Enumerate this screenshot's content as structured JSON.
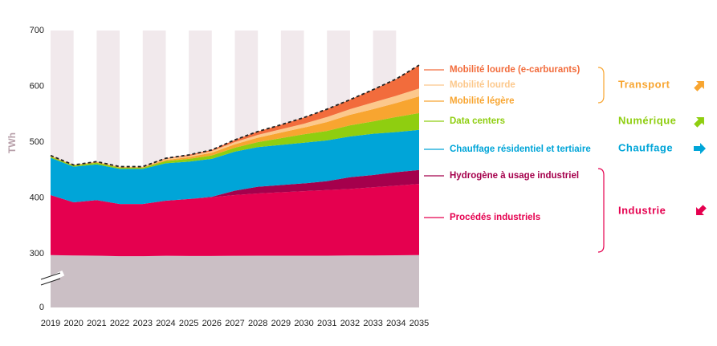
{
  "chart_data": {
    "type": "stacked-area",
    "ylabel": "TWh",
    "x": [
      2019,
      2020,
      2021,
      2022,
      2023,
      2024,
      2025,
      2026,
      2027,
      2028,
      2029,
      2030,
      2031,
      2032,
      2033,
      2034,
      2035
    ],
    "ylim": [
      0,
      700
    ],
    "yticks": [
      0,
      300,
      400,
      500,
      600,
      700
    ],
    "y_break": true,
    "total_line": true,
    "series": [
      {
        "color": "#cbbfc5",
        "values": [
          292,
          290,
          289,
          286,
          286,
          288,
          287,
          287,
          288,
          289,
          289,
          289,
          289,
          290,
          290,
          291,
          292
        ]
      },
      {
        "name": "Procédés industriels",
        "color": "#e5004f",
        "values": [
          113,
          102,
          107,
          103,
          103,
          107,
          111,
          114,
          117,
          119,
          121,
          123,
          125,
          126,
          129,
          131,
          133
        ]
      },
      {
        "name": "Hydrogène à usage industriel",
        "color": "#a5004c",
        "values": [
          0,
          0,
          0,
          0,
          0,
          0,
          0,
          1,
          8,
          12,
          13,
          14,
          16,
          21,
          22,
          24,
          25
        ]
      },
      {
        "name": "Chauffage résidentiel et tertiaire",
        "color": "#00a5d8",
        "values": [
          67,
          64,
          64,
          63,
          63,
          67,
          67,
          68,
          70,
          71,
          72,
          73,
          73,
          73,
          74,
          72,
          72
        ]
      },
      {
        "name": "Data centers",
        "color": "#8fce10",
        "values": [
          2,
          2,
          3,
          2,
          2,
          4,
          5,
          6,
          7,
          9,
          12,
          15,
          17,
          20,
          22,
          27,
          30
        ]
      },
      {
        "name": "Mobilité légère",
        "color": "#f8a530",
        "values": [
          1,
          1,
          1,
          1,
          1,
          2,
          3,
          5,
          6,
          8,
          10,
          12,
          16,
          19,
          22,
          25,
          30
        ]
      },
      {
        "name": "Mobilité lourde",
        "color": "#fcc88c",
        "values": [
          1,
          0,
          1,
          1,
          1,
          2,
          2,
          3,
          4,
          5,
          6,
          7,
          9,
          10,
          12,
          13,
          14
        ]
      },
      {
        "name": "Mobilité lourde (e-carburants)",
        "color": "#f26c3c",
        "values": [
          0,
          0,
          0,
          0,
          0,
          1,
          2,
          2,
          4,
          6,
          8,
          11,
          14,
          17,
          23,
          30,
          42
        ]
      }
    ],
    "groups": [
      {
        "label": "Transport",
        "color": "#f8a530"
      },
      {
        "label": "Numérique",
        "color": "#8fce10"
      },
      {
        "label": "Chauffage",
        "color": "#00a5d8"
      },
      {
        "label": "Industrie",
        "color": "#e5004f"
      }
    ]
  }
}
